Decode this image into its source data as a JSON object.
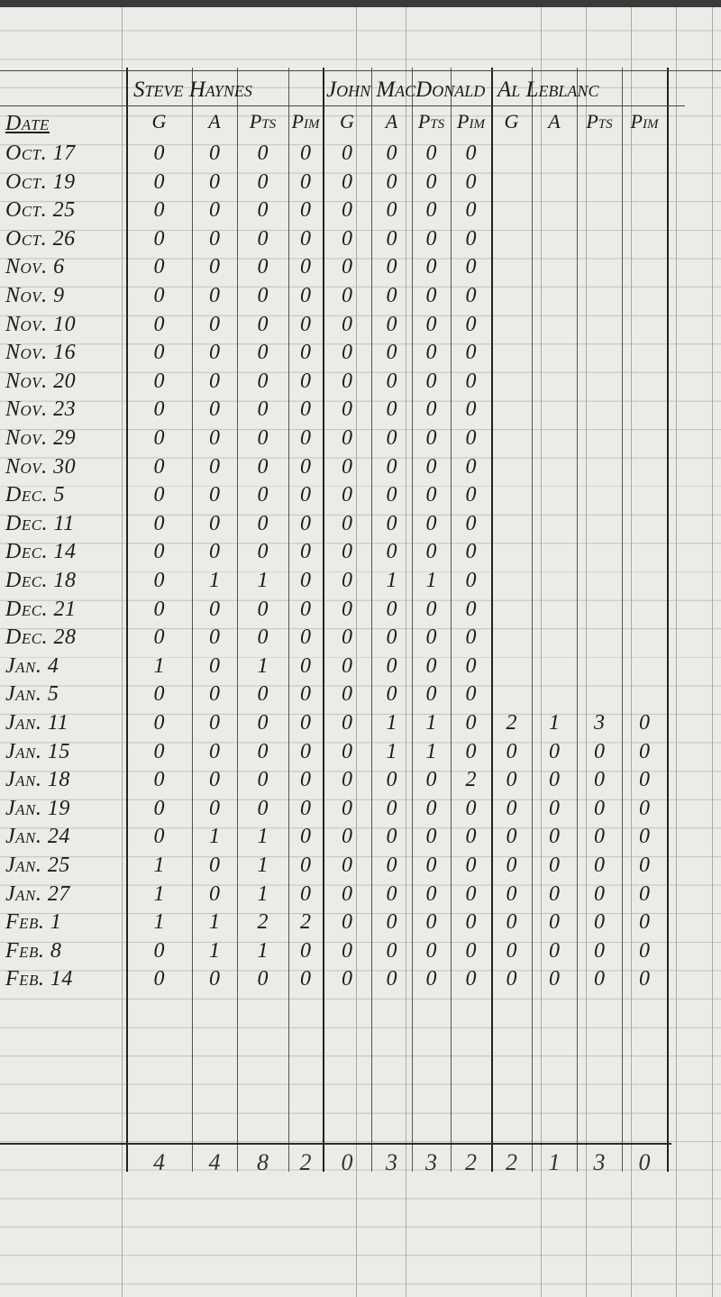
{
  "players": [
    "Steve Haynes",
    "John MacDonald",
    "Al Leblanc"
  ],
  "date_header": "Date",
  "stat_headers": [
    "G",
    "A",
    "Pts",
    "Pim"
  ],
  "rows": [
    {
      "date": "Oct. 17",
      "v": [
        "0",
        "0",
        "0",
        "0",
        "0",
        "0",
        "0",
        "0",
        "",
        "",
        "",
        ""
      ]
    },
    {
      "date": "Oct. 19",
      "v": [
        "0",
        "0",
        "0",
        "0",
        "0",
        "0",
        "0",
        "0",
        "",
        "",
        "",
        ""
      ]
    },
    {
      "date": "Oct. 25",
      "v": [
        "0",
        "0",
        "0",
        "0",
        "0",
        "0",
        "0",
        "0",
        "",
        "",
        "",
        ""
      ]
    },
    {
      "date": "Oct. 26",
      "v": [
        "0",
        "0",
        "0",
        "0",
        "0",
        "0",
        "0",
        "0",
        "",
        "",
        "",
        ""
      ]
    },
    {
      "date": "Nov. 6",
      "v": [
        "0",
        "0",
        "0",
        "0",
        "0",
        "0",
        "0",
        "0",
        "",
        "",
        "",
        ""
      ]
    },
    {
      "date": "Nov. 9",
      "v": [
        "0",
        "0",
        "0",
        "0",
        "0",
        "0",
        "0",
        "0",
        "",
        "",
        "",
        ""
      ]
    },
    {
      "date": "Nov. 10",
      "v": [
        "0",
        "0",
        "0",
        "0",
        "0",
        "0",
        "0",
        "0",
        "",
        "",
        "",
        ""
      ]
    },
    {
      "date": "Nov. 16",
      "v": [
        "0",
        "0",
        "0",
        "0",
        "0",
        "0",
        "0",
        "0",
        "",
        "",
        "",
        ""
      ]
    },
    {
      "date": "Nov. 20",
      "v": [
        "0",
        "0",
        "0",
        "0",
        "0",
        "0",
        "0",
        "0",
        "",
        "",
        "",
        ""
      ]
    },
    {
      "date": "Nov. 23",
      "v": [
        "0",
        "0",
        "0",
        "0",
        "0",
        "0",
        "0",
        "0",
        "",
        "",
        "",
        ""
      ]
    },
    {
      "date": "Nov. 29",
      "v": [
        "0",
        "0",
        "0",
        "0",
        "0",
        "0",
        "0",
        "0",
        "",
        "",
        "",
        ""
      ]
    },
    {
      "date": "Nov. 30",
      "v": [
        "0",
        "0",
        "0",
        "0",
        "0",
        "0",
        "0",
        "0",
        "",
        "",
        "",
        ""
      ]
    },
    {
      "date": "Dec. 5",
      "v": [
        "0",
        "0",
        "0",
        "0",
        "0",
        "0",
        "0",
        "0",
        "",
        "",
        "",
        ""
      ]
    },
    {
      "date": "Dec. 11",
      "v": [
        "0",
        "0",
        "0",
        "0",
        "0",
        "0",
        "0",
        "0",
        "",
        "",
        "",
        ""
      ]
    },
    {
      "date": "Dec. 14",
      "v": [
        "0",
        "0",
        "0",
        "0",
        "0",
        "0",
        "0",
        "0",
        "",
        "",
        "",
        ""
      ]
    },
    {
      "date": "Dec. 18",
      "v": [
        "0",
        "1",
        "1",
        "0",
        "0",
        "1",
        "1",
        "0",
        "",
        "",
        "",
        ""
      ]
    },
    {
      "date": "Dec. 21",
      "v": [
        "0",
        "0",
        "0",
        "0",
        "0",
        "0",
        "0",
        "0",
        "",
        "",
        "",
        ""
      ]
    },
    {
      "date": "Dec. 28",
      "v": [
        "0",
        "0",
        "0",
        "0",
        "0",
        "0",
        "0",
        "0",
        "",
        "",
        "",
        ""
      ]
    },
    {
      "date": "Jan. 4",
      "v": [
        "1",
        "0",
        "1",
        "0",
        "0",
        "0",
        "0",
        "0",
        "",
        "",
        "",
        ""
      ]
    },
    {
      "date": "Jan. 5",
      "v": [
        "0",
        "0",
        "0",
        "0",
        "0",
        "0",
        "0",
        "0",
        "",
        "",
        "",
        ""
      ]
    },
    {
      "date": "Jan. 11",
      "v": [
        "0",
        "0",
        "0",
        "0",
        "0",
        "1",
        "1",
        "0",
        "2",
        "1",
        "3",
        "0"
      ]
    },
    {
      "date": "Jan. 15",
      "v": [
        "0",
        "0",
        "0",
        "0",
        "0",
        "1",
        "1",
        "0",
        "0",
        "0",
        "0",
        "0"
      ]
    },
    {
      "date": "Jan. 18",
      "v": [
        "0",
        "0",
        "0",
        "0",
        "0",
        "0",
        "0",
        "2",
        "0",
        "0",
        "0",
        "0"
      ]
    },
    {
      "date": "Jan. 19",
      "v": [
        "0",
        "0",
        "0",
        "0",
        "0",
        "0",
        "0",
        "0",
        "0",
        "0",
        "0",
        "0"
      ]
    },
    {
      "date": "Jan. 24",
      "v": [
        "0",
        "1",
        "1",
        "0",
        "0",
        "0",
        "0",
        "0",
        "0",
        "0",
        "0",
        "0"
      ]
    },
    {
      "date": "Jan. 25",
      "v": [
        "1",
        "0",
        "1",
        "0",
        "0",
        "0",
        "0",
        "0",
        "0",
        "0",
        "0",
        "0"
      ]
    },
    {
      "date": "Jan. 27",
      "v": [
        "1",
        "0",
        "1",
        "0",
        "0",
        "0",
        "0",
        "0",
        "0",
        "0",
        "0",
        "0"
      ]
    },
    {
      "date": "Feb. 1",
      "v": [
        "1",
        "1",
        "2",
        "2",
        "0",
        "0",
        "0",
        "0",
        "0",
        "0",
        "0",
        "0"
      ]
    },
    {
      "date": "Feb. 8",
      "v": [
        "0",
        "1",
        "1",
        "0",
        "0",
        "0",
        "0",
        "0",
        "0",
        "0",
        "0",
        "0"
      ]
    },
    {
      "date": "Feb. 14",
      "v": [
        "0",
        "0",
        "0",
        "0",
        "0",
        "0",
        "0",
        "0",
        "0",
        "0",
        "0",
        "0"
      ]
    }
  ],
  "totals": [
    "4",
    "4",
    "8",
    "2",
    "0",
    "3",
    "3",
    "2",
    "2",
    "1",
    "3",
    "0"
  ]
}
